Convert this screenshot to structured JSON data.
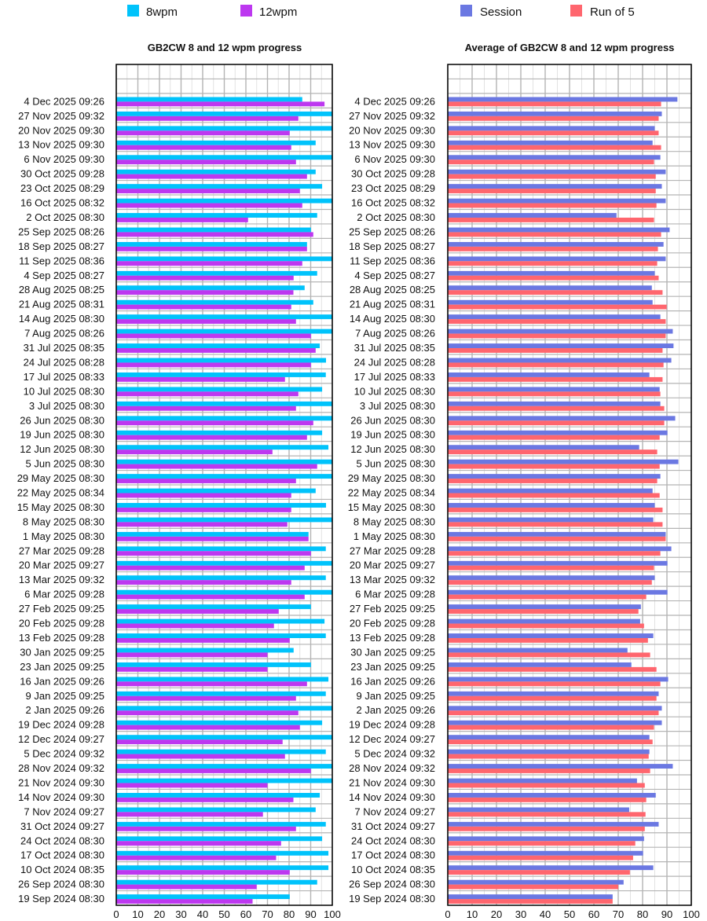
{
  "chart_data": [
    {
      "type": "bar",
      "orientation": "horizontal",
      "title": "GB2CW 8 and 12 wpm progress",
      "xlim": [
        0,
        100
      ],
      "xticks": [
        0,
        10,
        20,
        30,
        40,
        50,
        60,
        70,
        80,
        90,
        100
      ],
      "grid": true,
      "legend_position": "top",
      "categories": [
        "4 Dec 2025 09:26",
        "27 Nov 2025 09:32",
        "20 Nov 2025 09:30",
        "13 Nov 2025 09:30",
        "6 Nov 2025 09:30",
        "30 Oct 2025 09:28",
        "23 Oct 2025 08:29",
        "16 Oct 2025 08:32",
        "2 Oct 2025 08:30",
        "25 Sep 2025 08:26",
        "18 Sep 2025 08:27",
        "11 Sep 2025 08:36",
        "4 Sep 2025 08:27",
        "28 Aug 2025 08:25",
        "21 Aug 2025 08:31",
        "14 Aug 2025 08:30",
        "7 Aug 2025 08:26",
        "31 Jul 2025 08:35",
        "24 Jul 2025 08:28",
        "17 Jul 2025 08:33",
        "10 Jul 2025 08:30",
        "3 Jul 2025 08:30",
        "26 Jun 2025 08:30",
        "19 Jun 2025 08:30",
        "12 Jun 2025 08:30",
        "5 Jun 2025 08:30",
        "29 May 2025 08:30",
        "22 May 2025 08:34",
        "15 May 2025 08:30",
        "8 May 2025 08:30",
        "1 May 2025 08:30",
        "27 Mar 2025 09:28",
        "20 Mar 2025 09:27",
        "13 Mar 2025 09:32",
        "6 Mar 2025 09:28",
        "27 Feb 2025 09:25",
        "20 Feb 2025 09:28",
        "13 Feb 2025 09:28",
        "30 Jan 2025 09:25",
        "23 Jan 2025 09:25",
        "16 Jan 2025 09:26",
        "9 Jan 2025 09:25",
        "2 Jan 2025 09:26",
        "19 Dec 2024 09:28",
        "12 Dec 2024 09:27",
        "5 Dec 2024 09:32",
        "28 Nov 2024 09:32",
        "21 Nov 2024 09:30",
        "14 Nov 2024 09:30",
        "7 Nov 2024 09:27",
        "31 Oct 2024 09:27",
        "24 Oct 2024 08:30",
        "17 Oct 2024 08:30",
        "10 Oct 2024 08:35",
        "26 Sep 2024 08:30",
        "19 Sep 2024 08:30"
      ],
      "series": [
        {
          "name": "8wpm",
          "color": "#00c3fb",
          "values": [
            86.1,
            100,
            100,
            92.3,
            100,
            92.3,
            95.3,
            100,
            93,
            90.1,
            88.3,
            100,
            93,
            87.2,
            91.2,
            100,
            100,
            94.2,
            97.1,
            97,
            95.3,
            100,
            100,
            95.3,
            98.2,
            100,
            100,
            92.3,
            97.1,
            100,
            89,
            97,
            100,
            97,
            100,
            90.1,
            96.4,
            97,
            82.1,
            90.1,
            98.2,
            97,
            100,
            95.3,
            100,
            97,
            100,
            100,
            94.2,
            92.3,
            97,
            95.3,
            98.2,
            98.2,
            93,
            80.3
          ]
        },
        {
          "name": "12wpm",
          "color": "#bd38f0",
          "values": [
            96.4,
            84.3,
            80.3,
            81,
            83.2,
            88.3,
            85,
            86.1,
            61,
            91.2,
            88.3,
            86.1,
            82.1,
            82,
            81,
            83.2,
            90.1,
            92.3,
            90.1,
            78.1,
            84.3,
            83.2,
            91.2,
            88.3,
            72.3,
            93,
            83.2,
            81,
            81,
            79.2,
            89,
            90.1,
            87.2,
            81,
            87.2,
            75.2,
            73,
            80.3,
            70,
            70,
            88.3,
            83.2,
            84.3,
            85,
            77,
            78.1,
            90.1,
            70,
            82,
            67.9,
            83.2,
            76.3,
            74,
            80.3,
            65,
            63.1
          ]
        }
      ]
    },
    {
      "type": "bar",
      "orientation": "horizontal",
      "title": "Average of GB2CW 8 and 12 wpm progress",
      "xlim": [
        0,
        100
      ],
      "xticks": [
        0,
        10,
        20,
        30,
        40,
        50,
        60,
        70,
        80,
        90,
        100
      ],
      "grid": true,
      "legend_position": "top",
      "categories": [
        "4 Dec 2025 09:26",
        "27 Nov 2025 09:32",
        "20 Nov 2025 09:30",
        "13 Nov 2025 09:30",
        "6 Nov 2025 09:30",
        "30 Oct 2025 09:28",
        "23 Oct 2025 08:29",
        "16 Oct 2025 08:32",
        "2 Oct 2025 08:30",
        "25 Sep 2025 08:26",
        "18 Sep 2025 08:27",
        "11 Sep 2025 08:36",
        "4 Sep 2025 08:27",
        "28 Aug 2025 08:25",
        "21 Aug 2025 08:31",
        "14 Aug 2025 08:30",
        "7 Aug 2025 08:26",
        "31 Jul 2025 08:35",
        "24 Jul 2025 08:28",
        "17 Jul 2025 08:33",
        "10 Jul 2025 08:30",
        "3 Jul 2025 08:30",
        "26 Jun 2025 08:30",
        "19 Jun 2025 08:30",
        "12 Jun 2025 08:30",
        "5 Jun 2025 08:30",
        "29 May 2025 08:30",
        "22 May 2025 08:34",
        "15 May 2025 08:30",
        "8 May 2025 08:30",
        "1 May 2025 08:30",
        "27 Mar 2025 09:28",
        "20 Mar 2025 09:27",
        "13 Mar 2025 09:32",
        "6 Mar 2025 09:28",
        "27 Feb 2025 09:25",
        "20 Feb 2025 09:28",
        "13 Feb 2025 09:28",
        "30 Jan 2025 09:25",
        "23 Jan 2025 09:25",
        "16 Jan 2025 09:26",
        "9 Jan 2025 09:25",
        "2 Jan 2025 09:26",
        "19 Dec 2024 09:28",
        "12 Dec 2024 09:27",
        "5 Dec 2024 09:32",
        "28 Nov 2024 09:32",
        "21 Nov 2024 09:30",
        "14 Nov 2024 09:30",
        "7 Nov 2024 09:27",
        "31 Oct 2024 09:27",
        "24 Oct 2024 08:30",
        "17 Oct 2024 08:30",
        "10 Oct 2024 08:35",
        "26 Sep 2024 08:30",
        "19 Sep 2024 08:30"
      ],
      "series": [
        {
          "name": "Session",
          "color": "#6b78e2",
          "values": [
            94.3,
            87.9,
            85,
            84.1,
            87.3,
            89.5,
            87.9,
            89.5,
            69.3,
            91.1,
            88.6,
            89.5,
            85,
            83.8,
            84.1,
            87.3,
            92.4,
            92.7,
            91.8,
            82.8,
            87,
            87.3,
            93.4,
            90.2,
            78.6,
            94.7,
            87.3,
            84.1,
            85,
            84.4,
            89.5,
            91.8,
            90.2,
            85,
            90.2,
            79.3,
            79,
            84.4,
            73.8,
            75.4,
            90.5,
            86.6,
            87.9,
            87.9,
            82.8,
            82.8,
            92.4,
            77.7,
            85.4,
            74.5,
            86.6,
            80.6,
            80.2,
            84.4,
            72.2,
            67.7
          ]
        },
        {
          "name": "Run of 5",
          "color": "#ff666e",
          "values": [
            87.6,
            86.6,
            86.6,
            87.6,
            84.7,
            85.4,
            85.4,
            85.7,
            84.7,
            87.6,
            86.3,
            86,
            86.6,
            88.2,
            89.9,
            89.5,
            89.5,
            88.2,
            88.6,
            88.2,
            87.3,
            88.9,
            88.9,
            87,
            86,
            87,
            86,
            87,
            88.2,
            88.2,
            89.5,
            87.3,
            84.7,
            83.8,
            81.5,
            78.3,
            80.6,
            82.2,
            83.1,
            85.7,
            87.3,
            85.7,
            86.6,
            84.7,
            84.1,
            82.5,
            83.1,
            80.9,
            81.5,
            81.2,
            80.9,
            77,
            76.1,
            74.8,
            70,
            67.7
          ]
        }
      ]
    }
  ]
}
